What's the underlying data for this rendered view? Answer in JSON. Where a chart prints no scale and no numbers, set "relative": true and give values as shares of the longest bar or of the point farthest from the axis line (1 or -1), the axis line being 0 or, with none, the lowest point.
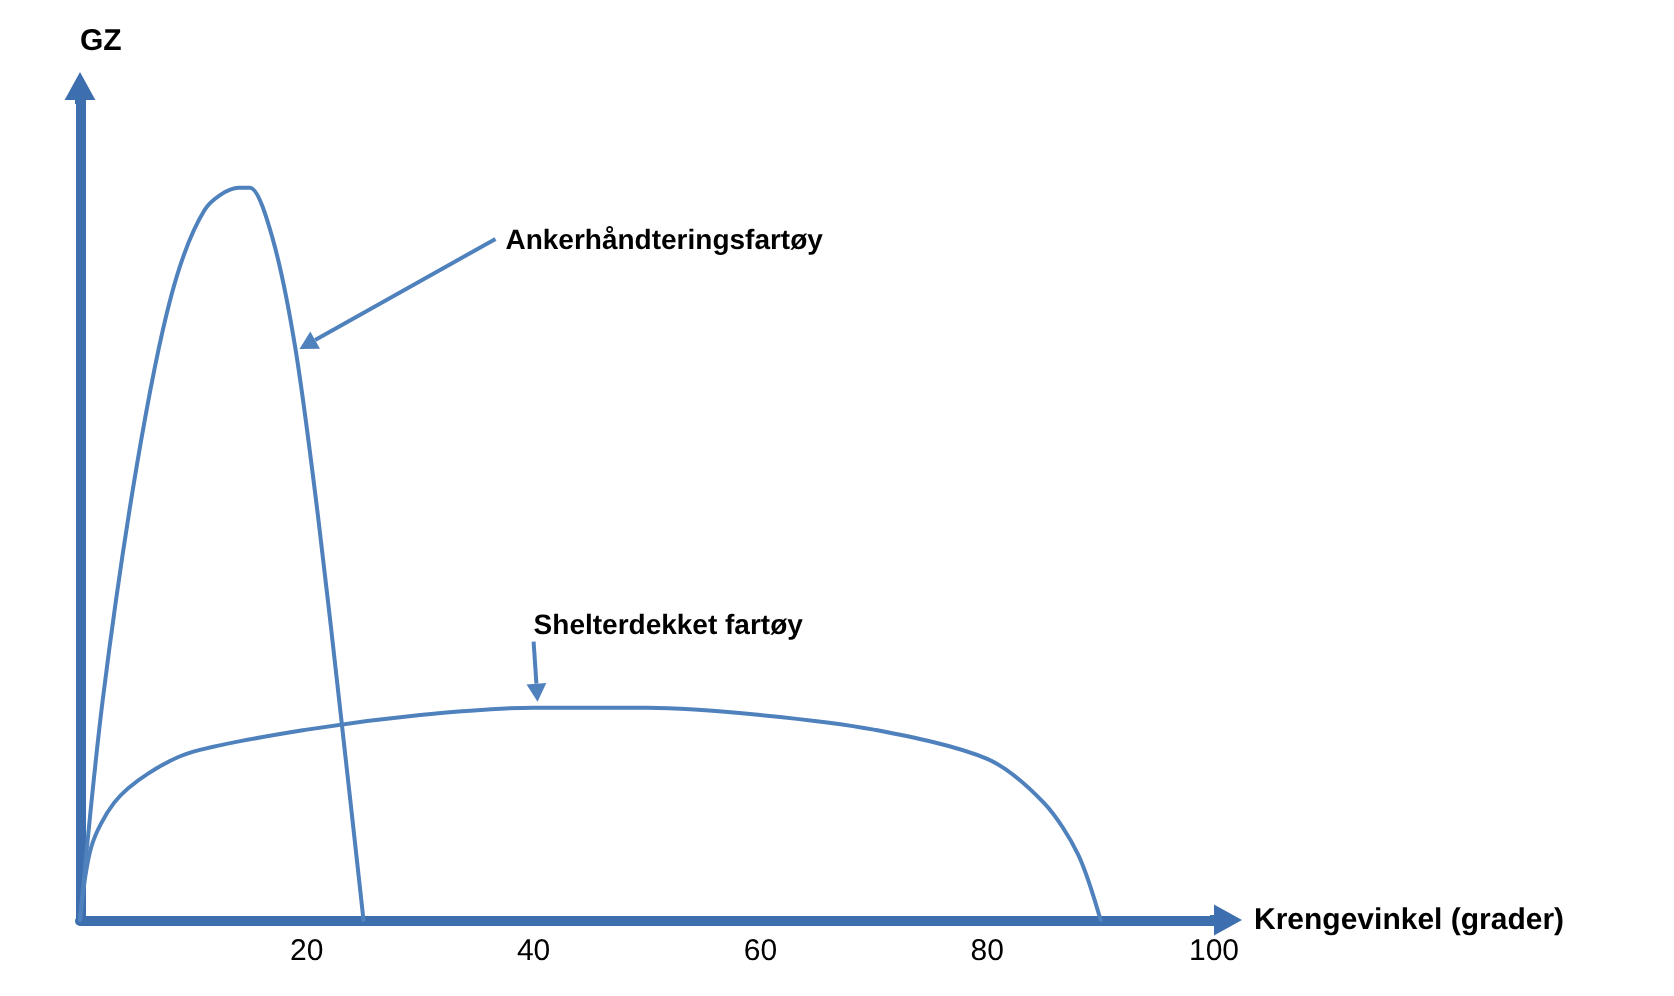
{
  "chart_data": {
    "type": "line",
    "relative": true,
    "xlabel": "Krengevinkel (grader)",
    "ylabel": "GZ",
    "xlim": [
      0,
      100
    ],
    "xticks": [
      20,
      40,
      60,
      80,
      100
    ],
    "tick_labels": "x",
    "grid": false,
    "legend": false,
    "marker": "none",
    "line_style": "solid",
    "series": [
      {
        "name": "Ankerhåndteringsfartøy",
        "color": "#4f81bd",
        "x": [
          0,
          2,
          5,
          8,
          11,
          14,
          15,
          17,
          19,
          21,
          23,
          25
        ],
        "values": [
          0,
          0.3,
          0.62,
          0.85,
          0.97,
          1.0,
          1.0,
          0.93,
          0.78,
          0.55,
          0.28,
          0
        ]
      },
      {
        "name": "Shelterdekket fartøy",
        "color": "#4f81bd",
        "x": [
          0,
          1,
          3,
          6,
          10,
          20,
          30,
          40,
          50,
          60,
          70,
          80,
          85,
          88,
          90
        ],
        "values": [
          0,
          0.1,
          0.16,
          0.2,
          0.23,
          0.26,
          0.28,
          0.29,
          0.29,
          0.28,
          0.26,
          0.22,
          0.16,
          0.09,
          0
        ]
      }
    ]
  }
}
